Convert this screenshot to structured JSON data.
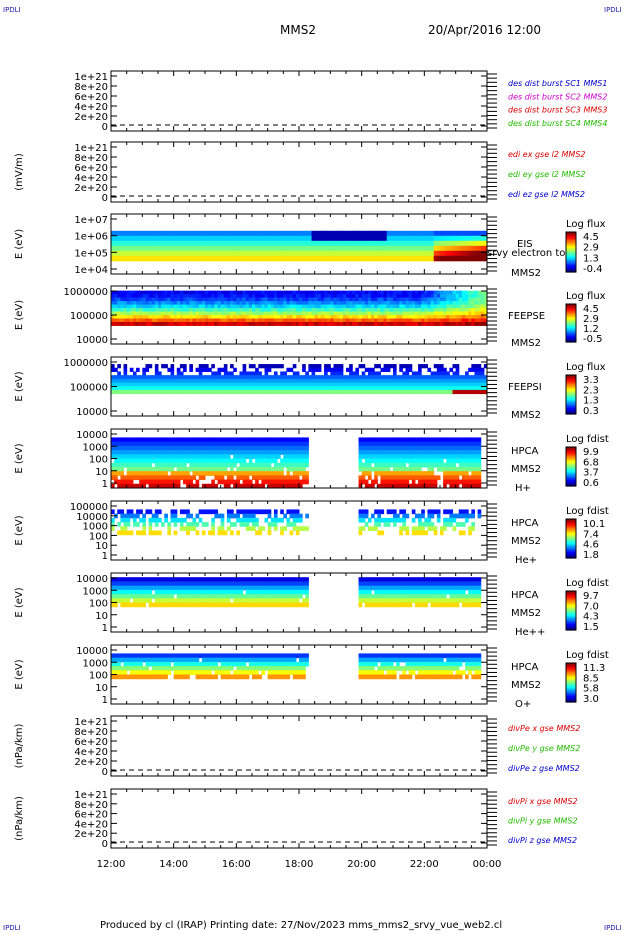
{
  "corners": {
    "tl": "IPDLI",
    "tr": "IPDLI",
    "bl": "IPDLI",
    "br": "IPDLI"
  },
  "header": {
    "spacecraft": "MMS2",
    "datetime": "20/Apr/2016 12:00"
  },
  "footer": {
    "text": "Produced by cl (IRAP)   Printing date: 27/Nov/2023   mms_mms2_srvy_vue_web2.cl"
  },
  "colors": {
    "red": "#dd0000",
    "green": "#22bb00",
    "blue": "#0000cc",
    "magenta": "#cc00cc",
    "frame": "#000000"
  },
  "x_axis": {
    "ticks": [
      "12:00",
      "14:00",
      "16:00",
      "18:00",
      "20:00",
      "22:00",
      "00:00"
    ]
  },
  "chart_data": [
    {
      "type": "line",
      "id": "p1",
      "ylabel": "",
      "yticks": [
        "1e+21",
        "8e+20",
        "6e+20",
        "4e+20",
        "2e+20",
        "0"
      ],
      "legend": [
        {
          "text": "des dist burst SC1 MMS1",
          "color": "#0000cc"
        },
        {
          "text": "des dist burst SC2 MMS2",
          "color": "#cc00cc"
        },
        {
          "text": "des dist burst SC3 MMS3",
          "color": "#dd0000"
        },
        {
          "text": "des dist burst SC4 MMS4",
          "color": "#22bb00"
        }
      ]
    },
    {
      "type": "line",
      "id": "p2",
      "ylabel": "(mV/m)",
      "yticks": [
        "1e+21",
        "8e+20",
        "6e+20",
        "4e+20",
        "2e+20",
        "0"
      ],
      "legend": [
        {
          "text": "edi ex gse l2 MMS2",
          "color": "#dd0000"
        },
        {
          "text": "edi ey gse l2 MMS2",
          "color": "#22bb00"
        },
        {
          "text": "edi ez gse l2 MMS2",
          "color": "#0000cc"
        }
      ]
    },
    {
      "type": "heatmap",
      "id": "p3",
      "ylabel": "E (eV)",
      "yticks": [
        "1e+07",
        "1e+06",
        "1e+05",
        "1e+04"
      ],
      "labels": [
        "EIS",
        "srvy electron to",
        "MMS2"
      ],
      "colorbar": {
        "title": "Log flux",
        "ticks": [
          "4.5",
          "2.9",
          "1.3",
          "-0.4"
        ]
      }
    },
    {
      "type": "heatmap",
      "id": "p4",
      "ylabel": "E (eV)",
      "yticks": [
        "1000000",
        "100000",
        "10000"
      ],
      "labels": [
        "FEEPSE",
        "MMS2"
      ],
      "colorbar": {
        "title": "Log flux",
        "ticks": [
          "4.5",
          "2.9",
          "1.2",
          "-0.5"
        ]
      }
    },
    {
      "type": "heatmap",
      "id": "p5",
      "ylabel": "E (eV)",
      "yticks": [
        "1000000",
        "100000",
        "10000"
      ],
      "labels": [
        "FEEPSI",
        "MMS2"
      ],
      "colorbar": {
        "title": "Log flux",
        "ticks": [
          "3.3",
          "2.3",
          "1.3",
          "0.3"
        ]
      }
    },
    {
      "type": "heatmap",
      "id": "p6",
      "ylabel": "E (eV)",
      "yticks": [
        "10000",
        "1000",
        "100",
        "10",
        "1"
      ],
      "labels": [
        "HPCA",
        "MMS2",
        "H+"
      ],
      "colorbar": {
        "title": "Log fdist",
        "ticks": [
          "9.9",
          "6.8",
          "3.7",
          "0.6"
        ]
      }
    },
    {
      "type": "heatmap",
      "id": "p7",
      "ylabel": "E (eV)",
      "yticks": [
        "100000",
        "10000",
        "1000",
        "100",
        "10",
        "1"
      ],
      "labels": [
        "HPCA",
        "MMS2",
        "He+"
      ],
      "colorbar": {
        "title": "Log fdist",
        "ticks": [
          "10.1",
          "7.4",
          "4.6",
          "1.8"
        ]
      }
    },
    {
      "type": "heatmap",
      "id": "p8",
      "ylabel": "E (eV)",
      "yticks": [
        "10000",
        "1000",
        "100",
        "10",
        "1"
      ],
      "labels": [
        "HPCA",
        "MMS2",
        "He++"
      ],
      "colorbar": {
        "title": "Log fdist",
        "ticks": [
          "9.7",
          "7.0",
          "4.3",
          "1.5"
        ]
      }
    },
    {
      "type": "heatmap",
      "id": "p9",
      "ylabel": "E (eV)",
      "yticks": [
        "10000",
        "1000",
        "100",
        "10",
        "1"
      ],
      "labels": [
        "HPCA",
        "MMS2",
        "O+"
      ],
      "colorbar": {
        "title": "Log fdist",
        "ticks": [
          "11.3",
          "8.5",
          "5.8",
          "3.0"
        ]
      }
    },
    {
      "type": "line",
      "id": "p10",
      "ylabel": "(nPa/km)",
      "yticks": [
        "1e+21",
        "8e+20",
        "6e+20",
        "4e+20",
        "2e+20",
        "0"
      ],
      "legend": [
        {
          "text": "divPe x gse MMS2",
          "color": "#dd0000"
        },
        {
          "text": "divPe y gse MMS2",
          "color": "#22bb00"
        },
        {
          "text": "divPe z gse MMS2",
          "color": "#0000cc"
        }
      ]
    },
    {
      "type": "line",
      "id": "p11",
      "ylabel": "(nPa/km)",
      "yticks": [
        "1e+21",
        "8e+20",
        "6e+20",
        "4e+20",
        "2e+20",
        "0"
      ],
      "legend": [
        {
          "text": "divPi x gse MMS2",
          "color": "#dd0000"
        },
        {
          "text": "divPi y gse MMS2",
          "color": "#22bb00"
        },
        {
          "text": "divPi z gse MMS2",
          "color": "#0000cc"
        }
      ]
    }
  ]
}
